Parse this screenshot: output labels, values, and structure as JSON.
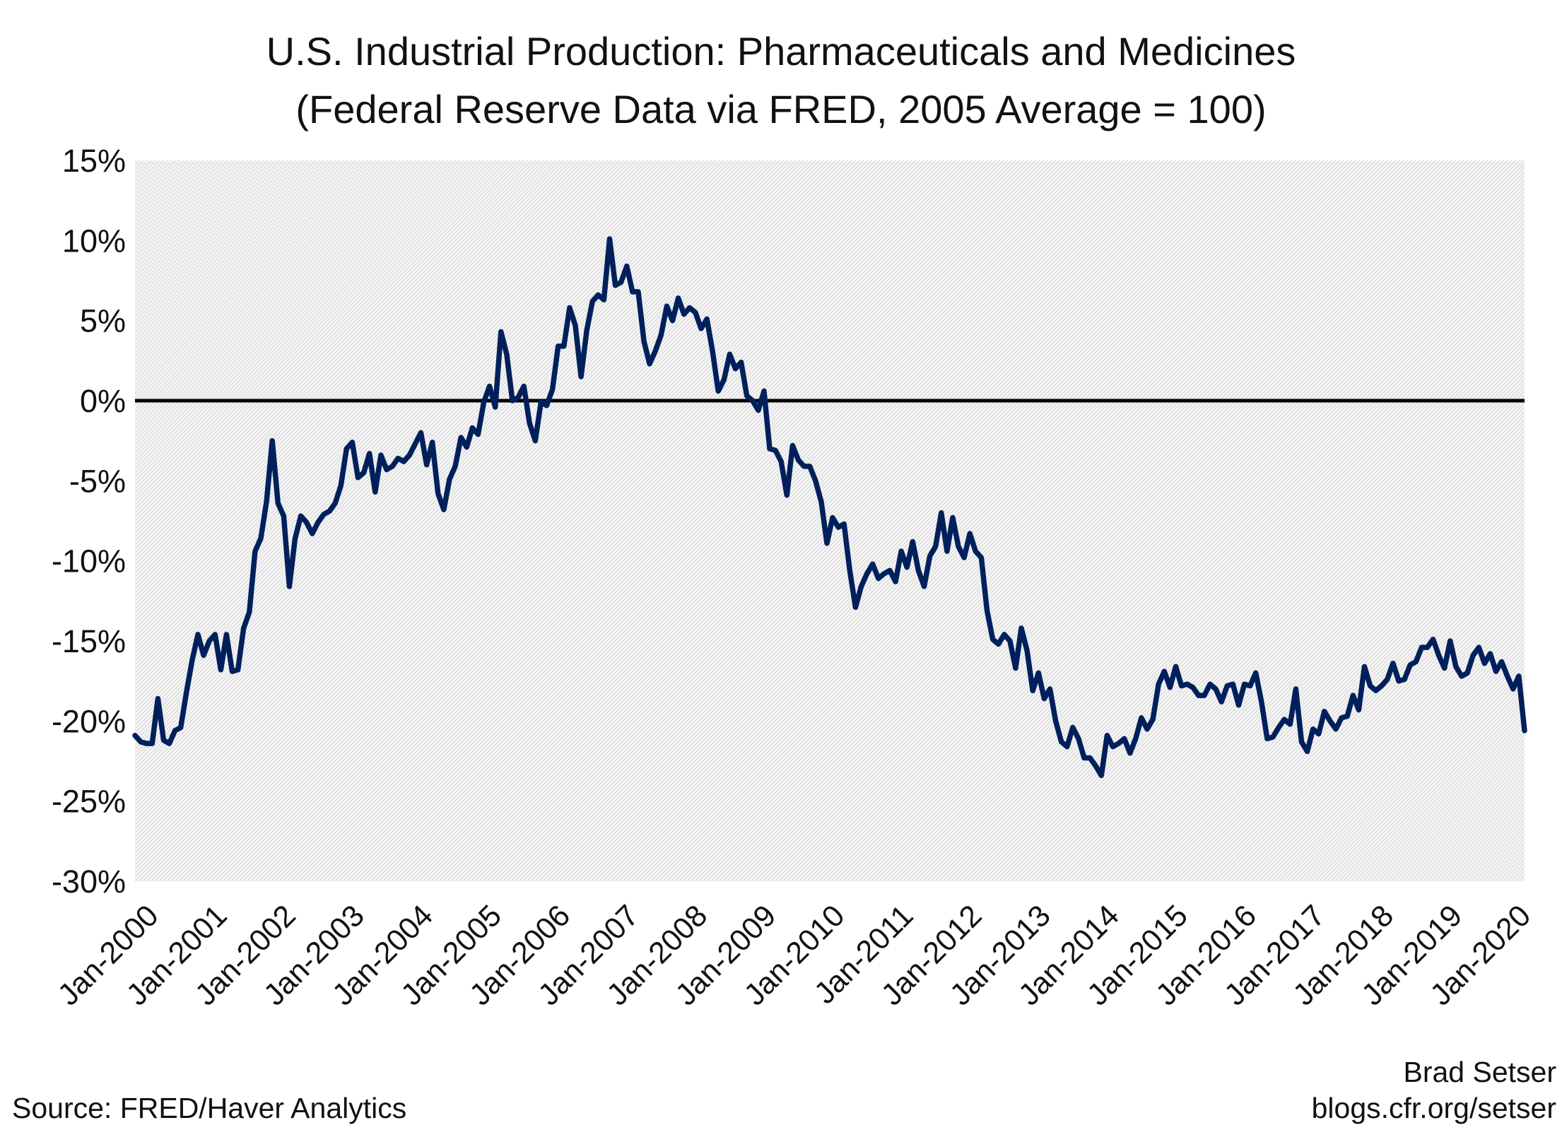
{
  "chart_data": {
    "type": "line",
    "title": "U.S. Industrial Production: Pharmaceuticals and Medicines",
    "subtitle": "(Federal Reserve Data via FRED, 2005 Average = 100)",
    "xlabel": "",
    "ylabel": "",
    "ylim": [
      -30,
      15
    ],
    "yticks": [
      "15%",
      "10%",
      "5%",
      "0%",
      "-5%",
      "-10%",
      "-15%",
      "-20%",
      "-25%",
      "-30%"
    ],
    "ytick_values": [
      15,
      10,
      5,
      0,
      -5,
      -10,
      -15,
      -20,
      -25,
      -30
    ],
    "xticks": [
      "Jan-2000",
      "Jan-2001",
      "Jan-2002",
      "Jan-2003",
      "Jan-2004",
      "Jan-2005",
      "Jan-2006",
      "Jan-2007",
      "Jan-2008",
      "Jan-2009",
      "Jan-2010",
      "Jan-2011",
      "Jan-2012",
      "Jan-2013",
      "Jan-2014",
      "Jan-2015",
      "Jan-2016",
      "Jan-2017",
      "Jan-2018",
      "Jan-2019",
      "Jan-2020"
    ],
    "grid": false,
    "reference_line": 0,
    "line_color": "#00205b",
    "x": [
      "2000-01",
      "2000-02",
      "2000-03",
      "2000-04",
      "2000-05",
      "2000-06",
      "2000-07",
      "2000-08",
      "2000-09",
      "2000-10",
      "2000-11",
      "2000-12",
      "2001-01",
      "2001-02",
      "2001-03",
      "2001-04",
      "2001-05",
      "2001-06",
      "2001-07",
      "2001-08",
      "2001-09",
      "2001-10",
      "2001-11",
      "2001-12",
      "2002-01",
      "2002-02",
      "2002-03",
      "2002-04",
      "2002-05",
      "2002-06",
      "2002-07",
      "2002-08",
      "2002-09",
      "2002-10",
      "2002-11",
      "2002-12",
      "2003-01",
      "2003-02",
      "2003-03",
      "2003-04",
      "2003-05",
      "2003-06",
      "2003-07",
      "2003-08",
      "2003-09",
      "2003-10",
      "2003-11",
      "2003-12",
      "2004-01",
      "2004-02",
      "2004-03",
      "2004-04",
      "2004-05",
      "2004-06",
      "2004-07",
      "2004-08",
      "2004-09",
      "2004-10",
      "2004-11",
      "2004-12",
      "2005-01",
      "2005-02",
      "2005-03",
      "2005-04",
      "2005-05",
      "2005-06",
      "2005-07",
      "2005-08",
      "2005-09",
      "2005-10",
      "2005-11",
      "2005-12",
      "2006-01",
      "2006-02",
      "2006-03",
      "2006-04",
      "2006-05",
      "2006-06",
      "2006-07",
      "2006-08",
      "2006-09",
      "2006-10",
      "2006-11",
      "2006-12",
      "2007-01",
      "2007-02",
      "2007-03",
      "2007-04",
      "2007-05",
      "2007-06",
      "2007-07",
      "2007-08",
      "2007-09",
      "2007-10",
      "2007-11",
      "2007-12",
      "2008-01",
      "2008-02",
      "2008-03",
      "2008-04",
      "2008-05",
      "2008-06",
      "2008-07",
      "2008-08",
      "2008-09",
      "2008-10",
      "2008-11",
      "2008-12",
      "2009-01",
      "2009-02",
      "2009-03",
      "2009-04",
      "2009-05",
      "2009-06",
      "2009-07",
      "2009-08",
      "2009-09",
      "2009-10",
      "2009-11",
      "2009-12",
      "2010-01",
      "2010-02",
      "2010-03",
      "2010-04",
      "2010-05",
      "2010-06",
      "2010-07",
      "2010-08",
      "2010-09",
      "2010-10",
      "2010-11",
      "2010-12",
      "2011-01",
      "2011-02",
      "2011-03",
      "2011-04",
      "2011-05",
      "2011-06",
      "2011-07",
      "2011-08",
      "2011-09",
      "2011-10",
      "2011-11",
      "2011-12",
      "2012-01",
      "2012-02",
      "2012-03",
      "2012-04",
      "2012-05",
      "2012-06",
      "2012-07",
      "2012-08",
      "2012-09",
      "2012-10",
      "2012-11",
      "2012-12",
      "2013-01",
      "2013-02",
      "2013-03",
      "2013-04",
      "2013-05",
      "2013-06",
      "2013-07",
      "2013-08",
      "2013-09",
      "2013-10",
      "2013-11",
      "2013-12",
      "2014-01",
      "2014-02",
      "2014-03",
      "2014-04",
      "2014-05",
      "2014-06",
      "2014-07",
      "2014-08",
      "2014-09",
      "2014-10",
      "2014-11",
      "2014-12",
      "2015-01",
      "2015-02",
      "2015-03",
      "2015-04",
      "2015-05",
      "2015-06",
      "2015-07",
      "2015-08",
      "2015-09",
      "2015-10",
      "2015-11",
      "2015-12",
      "2016-01",
      "2016-02",
      "2016-03",
      "2016-04",
      "2016-05",
      "2016-06",
      "2016-07",
      "2016-08",
      "2016-09",
      "2016-10",
      "2016-11",
      "2016-12",
      "2017-01",
      "2017-02",
      "2017-03",
      "2017-04",
      "2017-05",
      "2017-06",
      "2017-07",
      "2017-08",
      "2017-09",
      "2017-10",
      "2017-11",
      "2017-12",
      "2018-01",
      "2018-02",
      "2018-03",
      "2018-04",
      "2018-05",
      "2018-06",
      "2018-07",
      "2018-08",
      "2018-09",
      "2018-10",
      "2018-11",
      "2018-12",
      "2019-01",
      "2019-02",
      "2019-03",
      "2019-04",
      "2019-05",
      "2019-06",
      "2019-07",
      "2019-08",
      "2019-09",
      "2019-10",
      "2019-11",
      "2019-12",
      "2020-01",
      "2020-02",
      "2020-03",
      "2020-04"
    ],
    "values": [
      -20.9,
      -21.3,
      -21.4,
      -21.4,
      -18.6,
      -21.2,
      -21.4,
      -20.6,
      -20.4,
      -18.2,
      -16.2,
      -14.6,
      -15.9,
      -15.0,
      -14.6,
      -16.8,
      -14.6,
      -16.9,
      -16.8,
      -14.2,
      -13.2,
      -9.4,
      -8.6,
      -6.3,
      -2.5,
      -6.4,
      -7.2,
      -11.6,
      -8.6,
      -7.2,
      -7.6,
      -8.3,
      -7.6,
      -7.1,
      -6.9,
      -6.4,
      -5.3,
      -3.0,
      -2.6,
      -4.8,
      -4.5,
      -3.3,
      -5.7,
      -3.4,
      -4.3,
      -4.1,
      -3.6,
      -3.8,
      -3.4,
      -2.7,
      -2.0,
      -4.0,
      -2.6,
      -5.8,
      -6.8,
      -4.9,
      -4.1,
      -2.3,
      -2.9,
      -1.7,
      -2.1,
      -0.1,
      0.9,
      -0.4,
      4.3,
      2.9,
      0.0,
      0.2,
      0.9,
      -1.4,
      -2.5,
      -0.1,
      -0.3,
      0.7,
      3.4,
      3.4,
      5.8,
      4.7,
      1.5,
      4.4,
      6.2,
      6.6,
      6.3,
      10.1,
      7.2,
      7.4,
      8.4,
      6.8,
      6.8,
      3.7,
      2.3,
      3.1,
      4.1,
      5.9,
      5.0,
      6.4,
      5.4,
      5.8,
      5.5,
      4.5,
      5.1,
      3.1,
      0.6,
      1.3,
      2.9,
      2.0,
      2.4,
      0.3,
      0.0,
      -0.6,
      0.6,
      -3.0,
      -3.1,
      -3.8,
      -5.9,
      -2.8,
      -3.7,
      -4.1,
      -4.1,
      -5.0,
      -6.3,
      -8.9,
      -7.3,
      -7.9,
      -7.7,
      -10.6,
      -12.9,
      -11.6,
      -10.8,
      -10.2,
      -11.1,
      -10.8,
      -10.6,
      -11.3,
      -9.4,
      -10.4,
      -8.8,
      -10.6,
      -11.6,
      -9.7,
      -9.1,
      -7.0,
      -9.4,
      -7.3,
      -9.1,
      -9.8,
      -8.3,
      -9.4,
      -9.8,
      -13.1,
      -14.9,
      -15.2,
      -14.6,
      -15.0,
      -16.7,
      -14.2,
      -15.6,
      -18.1,
      -17.0,
      -18.6,
      -18.0,
      -20.0,
      -21.3,
      -21.6,
      -20.4,
      -21.1,
      -22.3,
      -22.3,
      -22.8,
      -23.4,
      -20.9,
      -21.6,
      -21.4,
      -21.1,
      -22.0,
      -21.1,
      -19.8,
      -20.5,
      -19.9,
      -17.7,
      -16.9,
      -17.9,
      -16.6,
      -17.8,
      -17.7,
      -17.9,
      -18.4,
      -18.4,
      -17.7,
      -18.0,
      -18.8,
      -17.8,
      -17.7,
      -19.0,
      -17.7,
      -17.8,
      -17.0,
      -18.8,
      -21.1,
      -21.0,
      -20.4,
      -19.9,
      -20.2,
      -18.0,
      -21.3,
      -21.9,
      -20.5,
      -20.8,
      -19.4,
      -20.0,
      -20.5,
      -19.8,
      -19.7,
      -18.4,
      -19.3,
      -16.6,
      -17.8,
      -18.1,
      -17.8,
      -17.4,
      -16.4,
      -17.5,
      -17.4,
      -16.5,
      -16.3,
      -15.4,
      -15.4,
      -14.9,
      -15.9,
      -16.7,
      -15.0,
      -16.6,
      -17.2,
      -17.0,
      -15.9,
      -15.4,
      -16.4,
      -15.8,
      -16.9,
      -16.3,
      -17.2,
      -18.0,
      -17.2,
      -20.6
    ]
  },
  "footer": {
    "source": "Source: FRED/Haver Analytics",
    "author": "Brad Setser",
    "blog": "blogs.cfr.org/setser"
  }
}
